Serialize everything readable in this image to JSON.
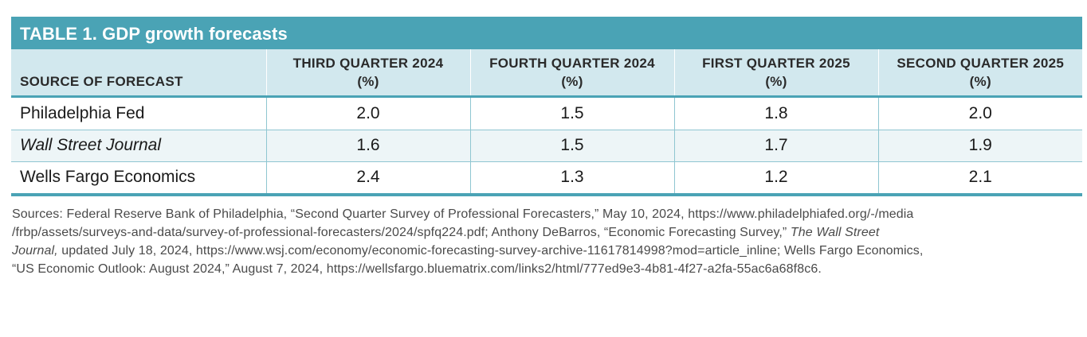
{
  "table": {
    "title": "TABLE 1. GDP growth forecasts",
    "columns": [
      {
        "line1": "SOURCE OF FORECAST",
        "line2": ""
      },
      {
        "line1": "THIRD QUARTER 2024",
        "line2": "(%)"
      },
      {
        "line1": "FOURTH QUARTER 2024",
        "line2": "(%)"
      },
      {
        "line1": "FIRST QUARTER 2025",
        "line2": "(%)"
      },
      {
        "line1": "SECOND QUARTER 2025",
        "line2": "(%)"
      }
    ],
    "rows": [
      {
        "source": "Philadelphia Fed",
        "values": [
          "2.0",
          "1.5",
          "1.8",
          "2.0"
        ]
      },
      {
        "source": "Wall Street Journal",
        "values": [
          "1.6",
          "1.5",
          "1.7",
          "1.9"
        ]
      },
      {
        "source": "Wells Fargo Economics",
        "values": [
          "2.4",
          "1.3",
          "1.2",
          "2.1"
        ]
      }
    ]
  },
  "sources": {
    "line1": "Sources: Federal Reserve Bank of Philadelphia, “Second Quarter Survey of Professional Forecasters,” May 10, 2024, https://www.philadelphiafed.org/-/media",
    "line2_a": "/frbp/assets/surveys-and-data/survey-of-professional-forecasters/2024/spfq224.pdf; Anthony DeBarros, “Economic Forecasting Survey,” ",
    "line2_italic": "The Wall Street",
    "line3_italic": "Journal,",
    "line3_b": " updated July 18, 2024, https://www.wsj.com/economy/economic-forecasting-survey-archive-11617814998?mod=article_inline; Wells Fargo Economics,",
    "line4": "“US Economic Outlook: August 2024,” August 7, 2024, https://wellsfargo.bluematrix.com/links2/html/777ed9e3-4b81-4f27-a2fa-55ac6a68f8c6."
  }
}
